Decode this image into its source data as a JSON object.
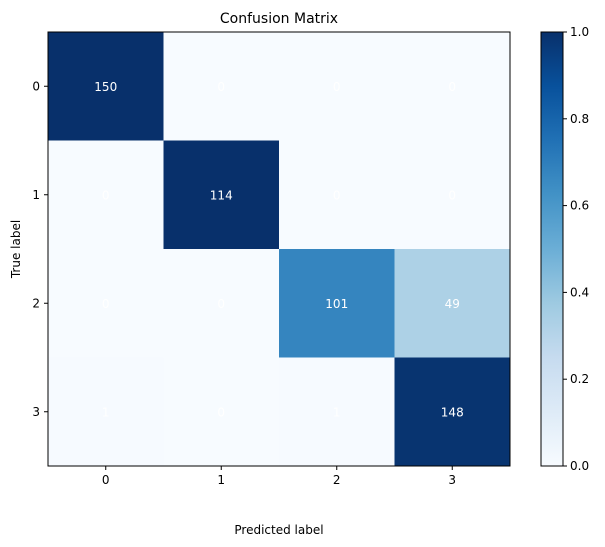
{
  "chart_data": {
    "type": "heatmap",
    "title": "Confusion Matrix",
    "xlabel": "Predicted label",
    "ylabel": "True label",
    "x_categories": [
      "0",
      "1",
      "2",
      "3"
    ],
    "y_categories": [
      "0",
      "1",
      "2",
      "3"
    ],
    "counts": [
      [
        150,
        0,
        0,
        0
      ],
      [
        0,
        114,
        0,
        0
      ],
      [
        0,
        0,
        101,
        49
      ],
      [
        1,
        0,
        1,
        148
      ]
    ],
    "colorbar": {
      "range": [
        0,
        1
      ],
      "ticks": [
        "0.0",
        "0.2",
        "0.4",
        "0.6",
        "0.8",
        "1.0"
      ],
      "colormap": "Blues"
    },
    "colors": {
      "text_on_cell": "#ffffff"
    }
  }
}
